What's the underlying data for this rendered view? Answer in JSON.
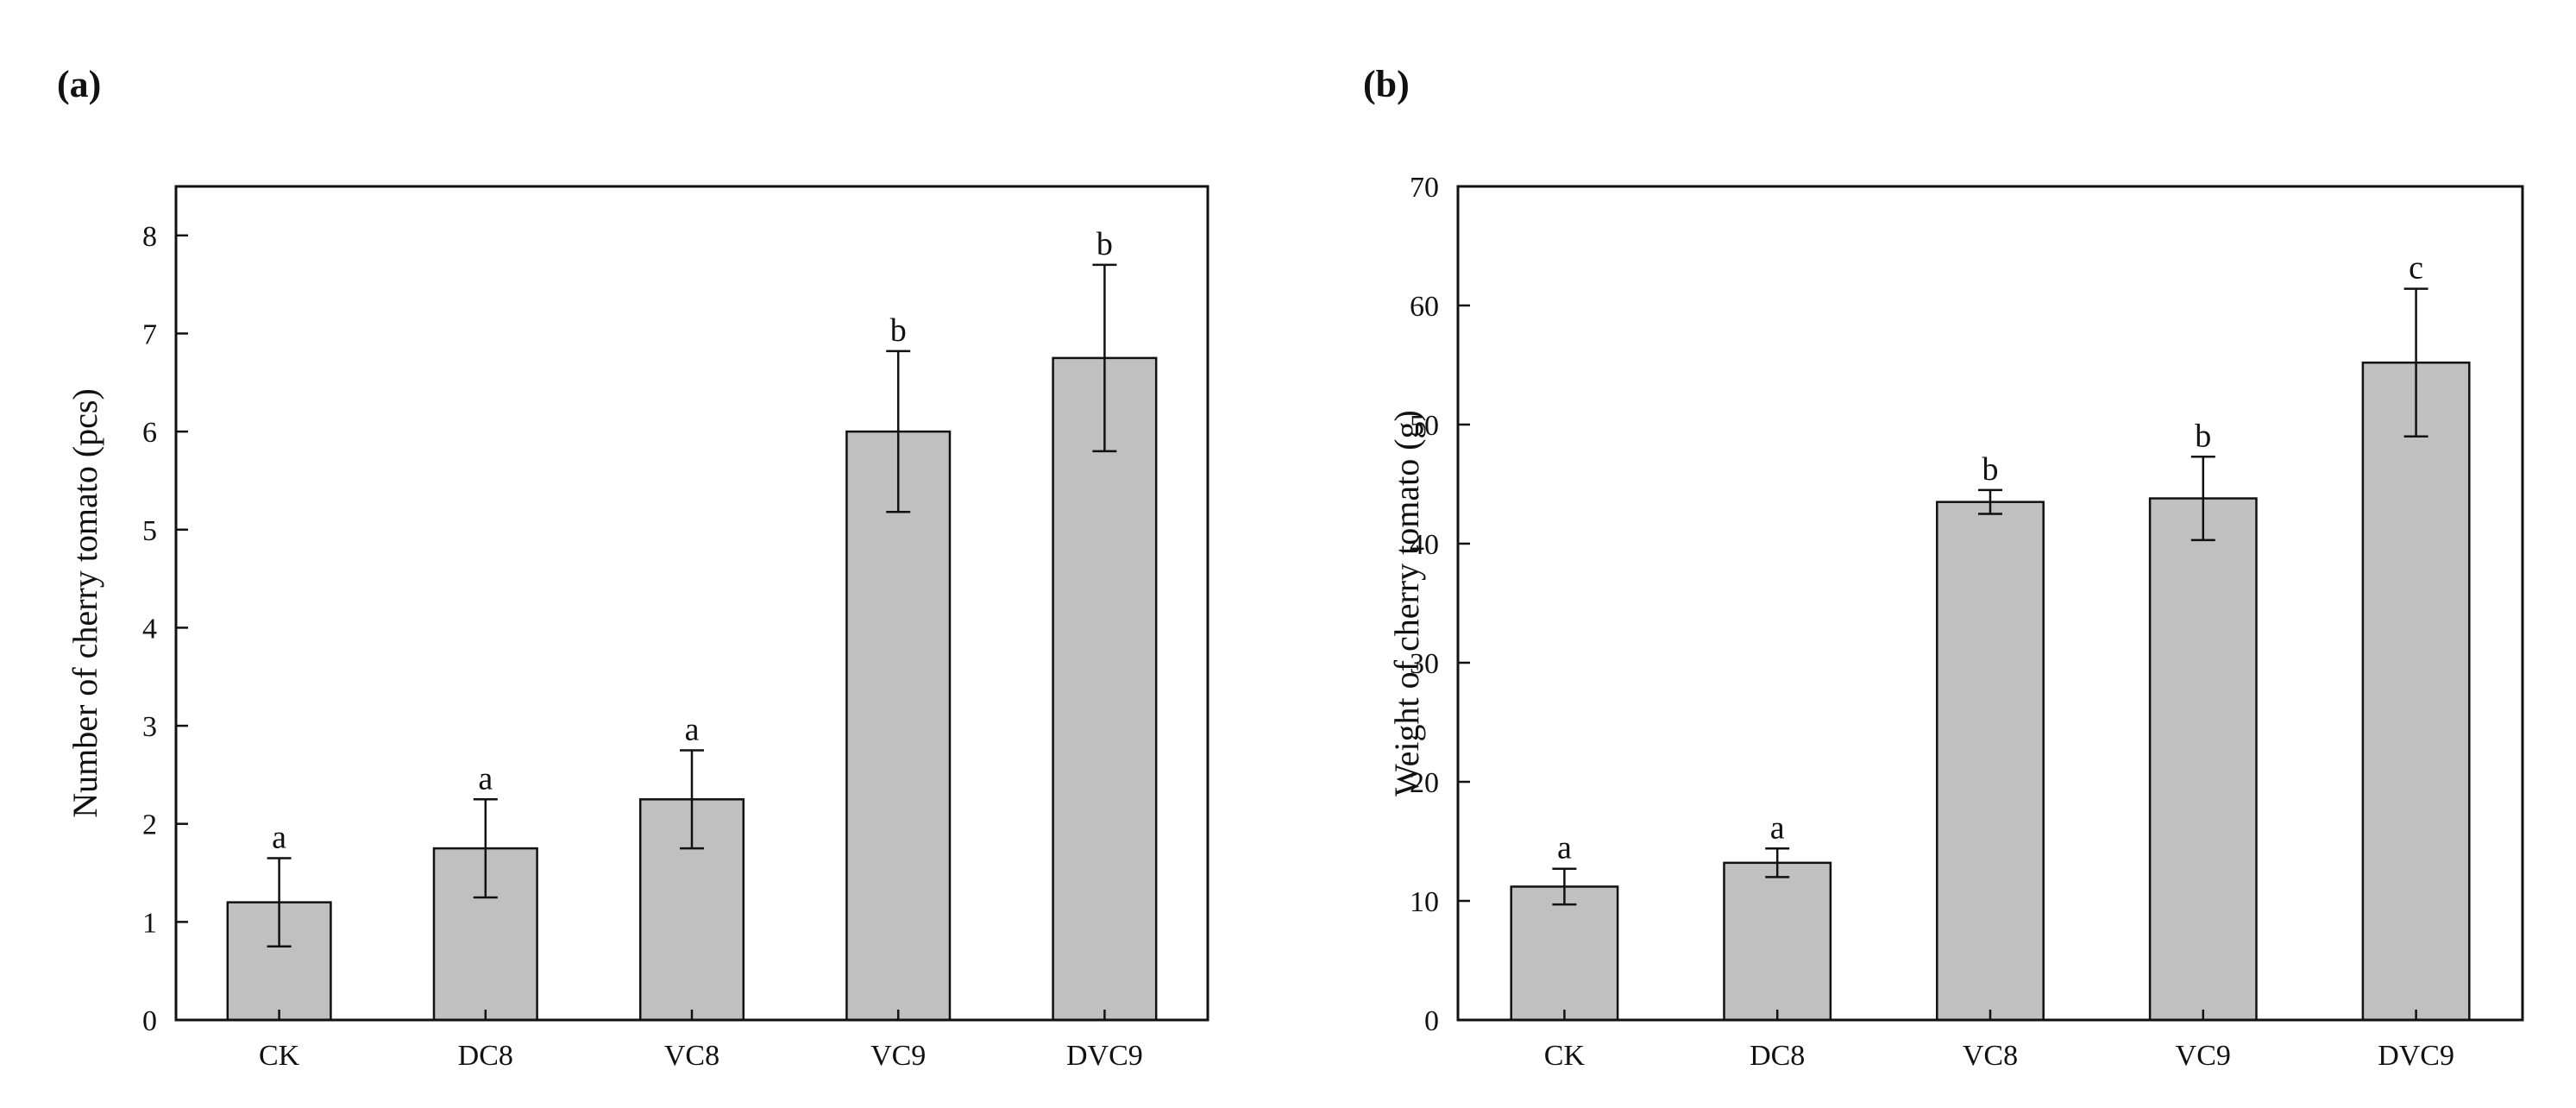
{
  "figure": {
    "background": "#ffffff",
    "bar_color": "#c0c0c0",
    "stroke_color": "#111111"
  },
  "chart_data": [
    {
      "panel": "(a)",
      "type": "bar",
      "title": "",
      "xlabel": "",
      "ylabel": "Number of cherry tomato (pcs)",
      "categories": [
        "CK",
        "DC8",
        "VC8",
        "VC9",
        "DVC9"
      ],
      "values": [
        1.2,
        1.75,
        2.25,
        6.0,
        6.75
      ],
      "errors": [
        0.45,
        0.5,
        0.5,
        0.82,
        0.95
      ],
      "significance": [
        "a",
        "a",
        "a",
        "b",
        "b"
      ],
      "ylim": [
        0,
        8.5
      ],
      "yticks": [
        0,
        1,
        2,
        3,
        4,
        5,
        6,
        7,
        8
      ],
      "grid": false
    },
    {
      "panel": "(b)",
      "type": "bar",
      "title": "",
      "xlabel": "",
      "ylabel": "Weight of cherry tomato (g)",
      "categories": [
        "CK",
        "DC8",
        "VC8",
        "VC9",
        "DVC9"
      ],
      "values": [
        11.2,
        13.2,
        43.5,
        43.8,
        55.2
      ],
      "errors": [
        1.5,
        1.2,
        1.0,
        3.5,
        6.2
      ],
      "significance": [
        "a",
        "a",
        "b",
        "b",
        "c"
      ],
      "ylim": [
        0,
        70
      ],
      "yticks": [
        0,
        10,
        20,
        30,
        40,
        50,
        60,
        70
      ],
      "grid": false
    }
  ]
}
